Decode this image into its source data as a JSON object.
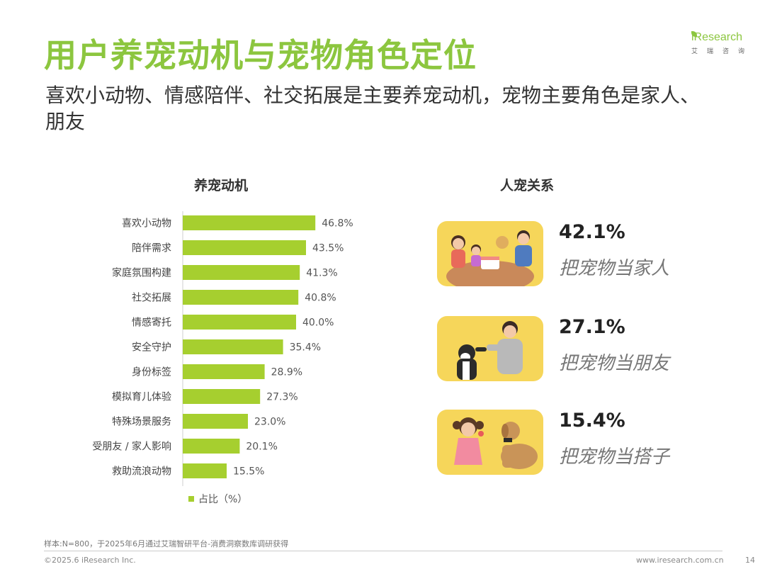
{
  "header": {
    "title": "用户养宠动机与宠物角色定位",
    "subtitle": "喜欢小动物、情感陪伴、社交拓展是主要养宠动机，宠物主要角色是家人、朋友"
  },
  "logo": {
    "brand": "iResearch",
    "cn": "艾瑞咨询"
  },
  "left_section": {
    "title": "养宠动机",
    "legend": "占比（%）"
  },
  "chart_data": {
    "type": "bar",
    "orientation": "horizontal",
    "title": "养宠动机",
    "categories": [
      "喜欢小动物",
      "陪伴需求",
      "家庭氛围构建",
      "社交拓展",
      "情感寄托",
      "安全守护",
      "身份标签",
      "模拟育儿体验",
      "特殊场景服务",
      "受朋友 / 家人影响",
      "救助流浪动物"
    ],
    "series": [
      {
        "name": "占比（%）",
        "values": [
          46.8,
          43.5,
          41.3,
          40.8,
          40.0,
          35.4,
          28.9,
          27.3,
          23.0,
          20.1,
          15.5
        ],
        "labels": [
          "46.8%",
          "43.5%",
          "41.3%",
          "40.8%",
          "40.0%",
          "35.4%",
          "28.9%",
          "27.3%",
          "23.0%",
          "20.1%",
          "15.5%"
        ]
      }
    ],
    "legend": "bottom-left",
    "grid": false,
    "bar_color": "#a6cf2f"
  },
  "right_section": {
    "title": "人宠关系",
    "items": [
      {
        "pct": "42.1%",
        "desc": "把宠物当家人"
      },
      {
        "pct": "27.1%",
        "desc": "把宠物当朋友"
      },
      {
        "pct": "15.4%",
        "desc": "把宠物当搭子"
      }
    ]
  },
  "footer": {
    "note": "样本:N=800，于2025年6月通过艾瑞智研平台-消费洞察数库调研获得",
    "copyright": "©2025.6 iResearch Inc.",
    "url": "www.iresearch.com.cn",
    "page": "14"
  },
  "colors": {
    "accent": "#8cc63f",
    "bar": "#a6cf2f",
    "card_bg": "#f6d65a"
  }
}
